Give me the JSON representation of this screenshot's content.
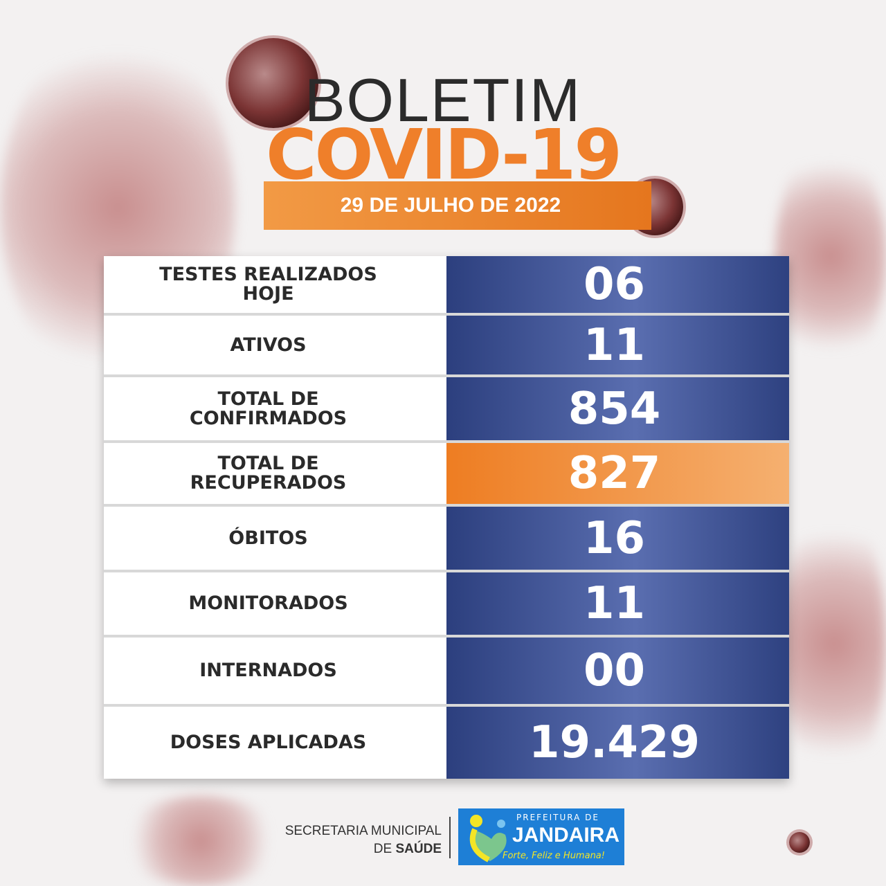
{
  "header": {
    "title_line1": "BOLETIM",
    "title_line2": "COVID-19",
    "date": "29 DE JULHO DE 2022"
  },
  "colors": {
    "orange": "#ef7f2a",
    "blue": "#3a4d8f",
    "logo_blue": "#1e7fd6"
  },
  "rows": [
    {
      "label": "TESTES REALIZADOS HOJE",
      "value": "06"
    },
    {
      "label": "ATIVOS",
      "value": "11"
    },
    {
      "label": "TOTAL DE CONFIRMADOS",
      "value": "854"
    },
    {
      "label": "TOTAL DE RECUPERADOS",
      "value": "827",
      "highlight": true
    },
    {
      "label": "ÓBITOS",
      "value": "16"
    },
    {
      "label": "MONITORADOS",
      "value": "11"
    },
    {
      "label": "INTERNADOS",
      "value": "00"
    },
    {
      "label": "DOSES APLICADAS",
      "value": "19.429"
    }
  ],
  "footer": {
    "secretaria_line1": "SECRETARIA MUNICIPAL",
    "secretaria_de": "DE ",
    "secretaria_saude": "SAÚDE",
    "logo_top": "PREFEITURA DE",
    "logo_name": "JANDAIRA",
    "logo_tagline": "Forte, Feliz e Humana!"
  }
}
